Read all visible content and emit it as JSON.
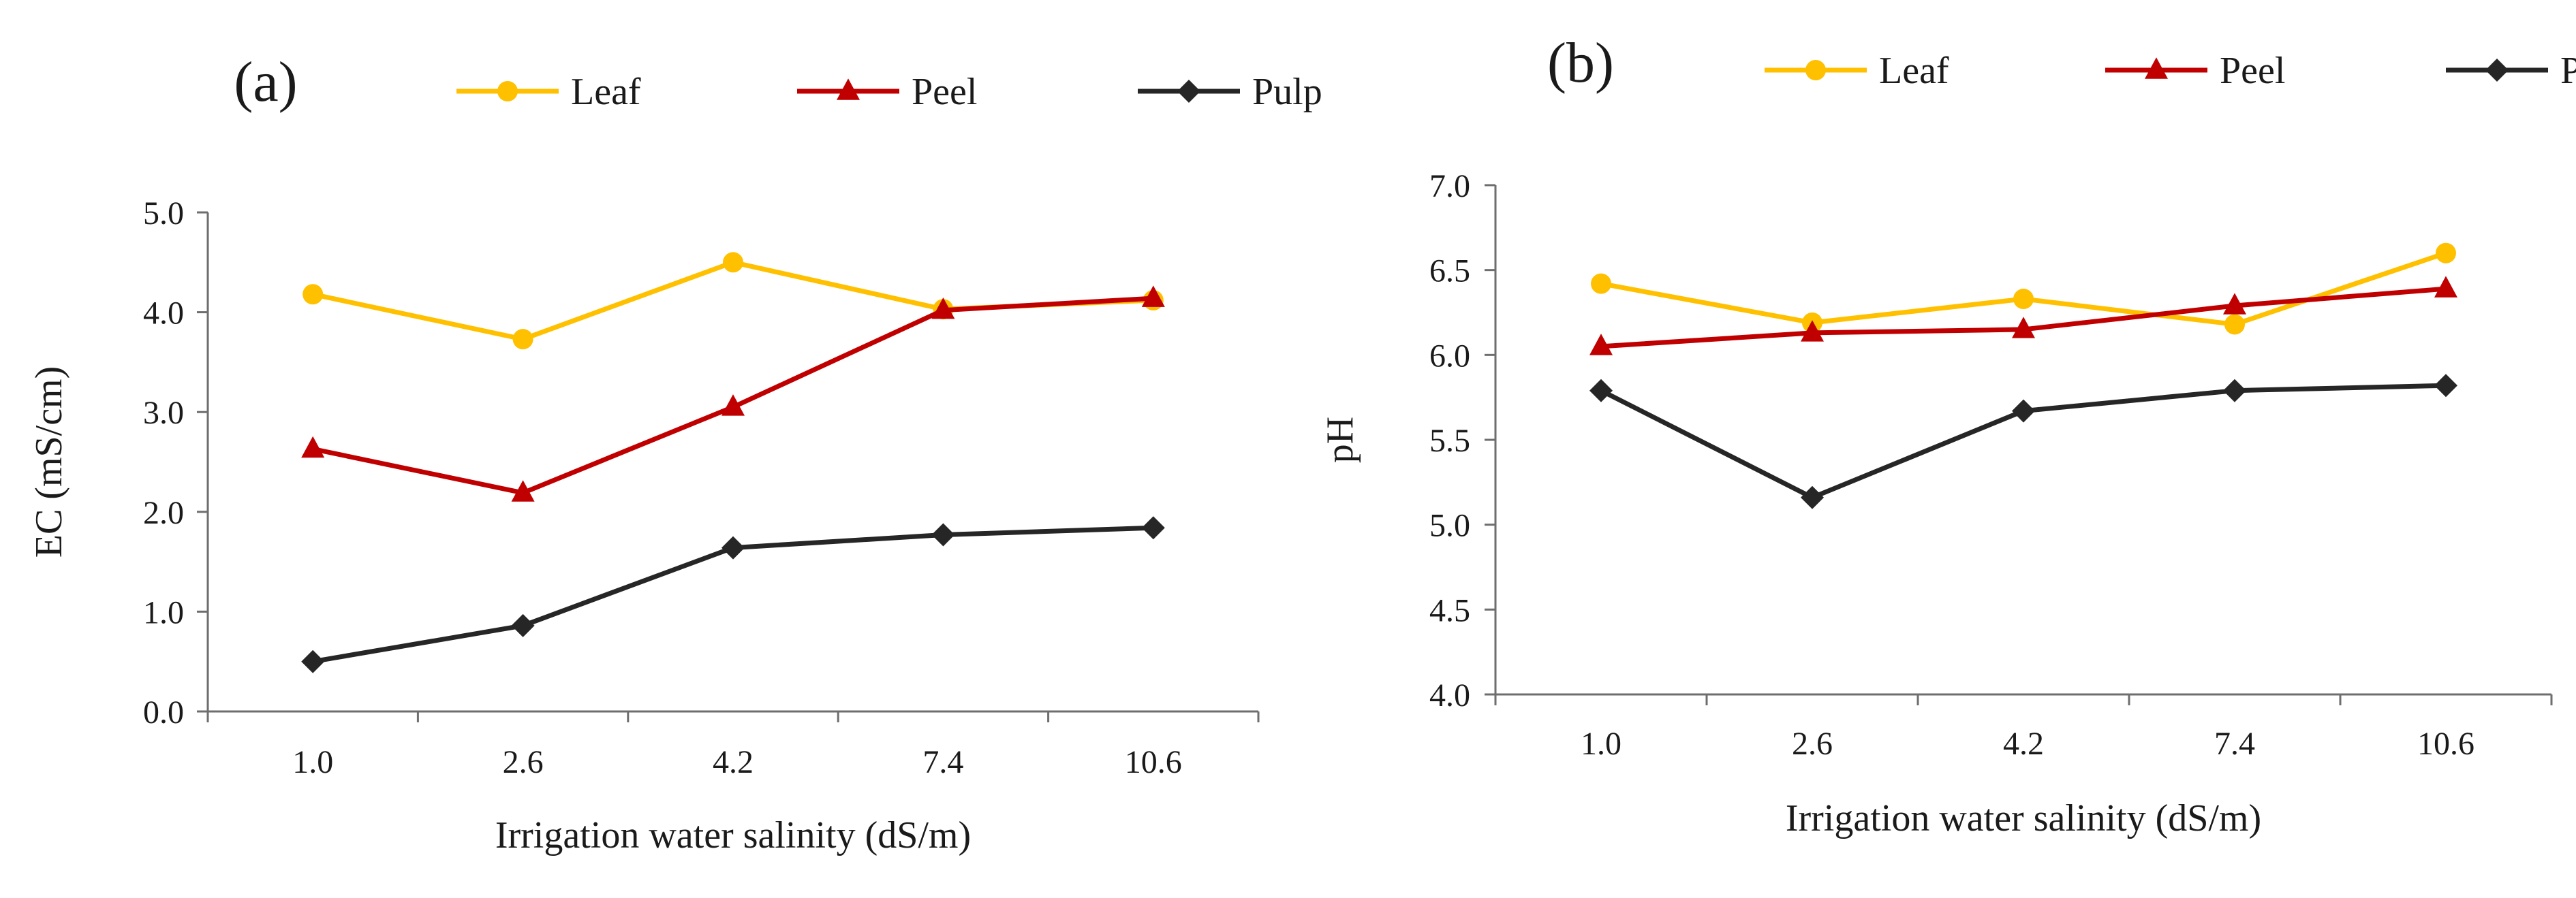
{
  "chart_data": [
    {
      "type": "line",
      "panel_label": "(a)",
      "categories": [
        "1.0",
        "2.6",
        "4.2",
        "7.4",
        "10.6"
      ],
      "xlabel": "Irrigation water salinity (dS/m)",
      "ylabel": "EC (mS/cm)",
      "ylim": [
        0.0,
        5.0
      ],
      "yticks": [
        "0.0",
        "1.0",
        "2.0",
        "3.0",
        "4.0",
        "5.0"
      ],
      "grid": false,
      "legend_position": "top",
      "series": [
        {
          "name": "Leaf",
          "color": "#FFC000",
          "marker": "circle",
          "values": [
            4.18,
            3.73,
            4.5,
            4.03,
            4.12
          ]
        },
        {
          "name": "Peel",
          "color": "#C00000",
          "marker": "triangle",
          "values": [
            2.63,
            2.19,
            3.05,
            4.02,
            4.14
          ]
        },
        {
          "name": "Pulp",
          "color": "#262626",
          "marker": "diamond",
          "values": [
            0.5,
            0.86,
            1.64,
            1.77,
            1.84
          ]
        }
      ]
    },
    {
      "type": "line",
      "panel_label": "(b)",
      "categories": [
        "1.0",
        "2.6",
        "4.2",
        "7.4",
        "10.6"
      ],
      "xlabel": "Irrigation water salinity (dS/m)",
      "ylabel": "pH",
      "ylim": [
        4.0,
        7.0
      ],
      "yticks": [
        "4.0",
        "4.5",
        "5.0",
        "5.5",
        "6.0",
        "6.5",
        "7.0"
      ],
      "grid": false,
      "legend_position": "top",
      "series": [
        {
          "name": "Leaf",
          "color": "#FFC000",
          "marker": "circle",
          "values": [
            6.42,
            6.19,
            6.33,
            6.18,
            6.6
          ]
        },
        {
          "name": "Peel",
          "color": "#C00000",
          "marker": "triangle",
          "values": [
            6.05,
            6.13,
            6.15,
            6.29,
            6.39
          ]
        },
        {
          "name": "Pulp",
          "color": "#262626",
          "marker": "diamond",
          "values": [
            5.79,
            5.16,
            5.67,
            5.79,
            5.82
          ]
        }
      ]
    }
  ]
}
